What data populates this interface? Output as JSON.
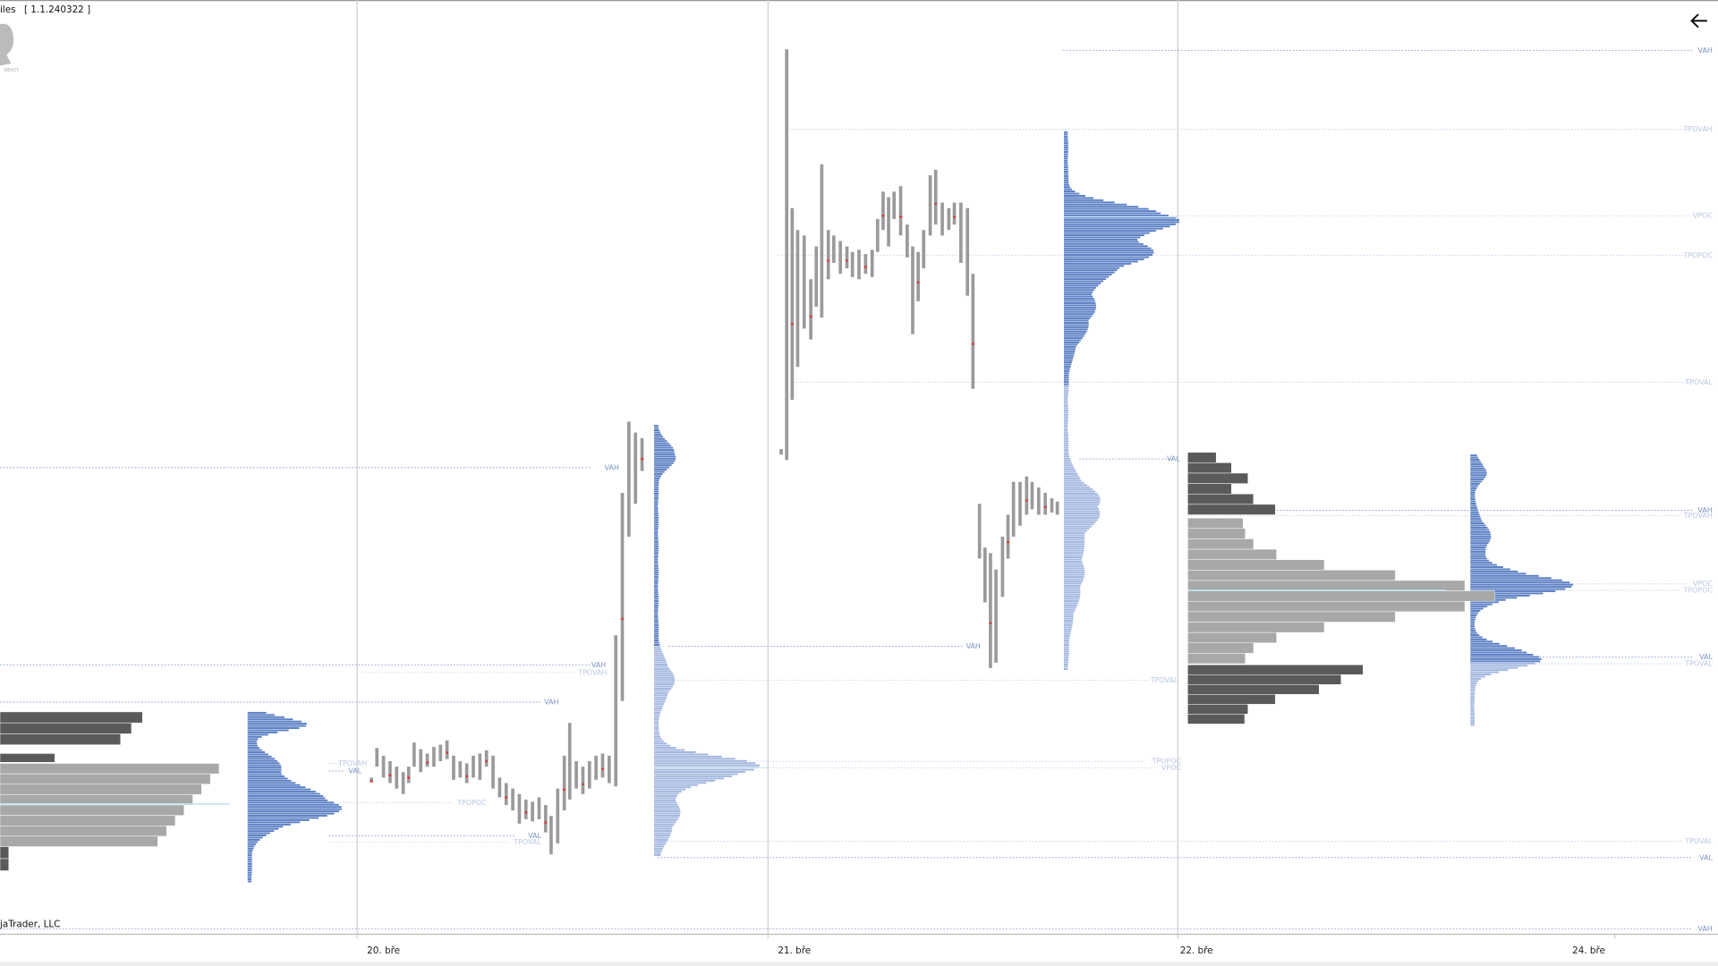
{
  "header": {
    "title": "iles",
    "version": "[ 1.1.240322 ]"
  },
  "footer": {
    "copyright": "jaTrader, LLC"
  },
  "x_axis": {
    "labels": [
      "20. bře",
      "21. bře",
      "22. bře",
      "24. bře"
    ]
  },
  "levels": [
    "VAH",
    "TPOVAH",
    "VPOC",
    "TPOPOC",
    "TPOVAL",
    "VAL",
    "VAH",
    "TPOVAL",
    "TPOPOC",
    "VPOC",
    "TPOVAL",
    "VAL",
    "VAH",
    "TPOVAH",
    "VPOC",
    "TPOPOC",
    "VAL",
    "TPOVAL",
    "VAH",
    "VAH",
    "VAH",
    "TPOVAH",
    "VAH",
    "TPOVAH",
    "VAL",
    "TPOPOC",
    "VAL",
    "TPOVAL"
  ]
}
